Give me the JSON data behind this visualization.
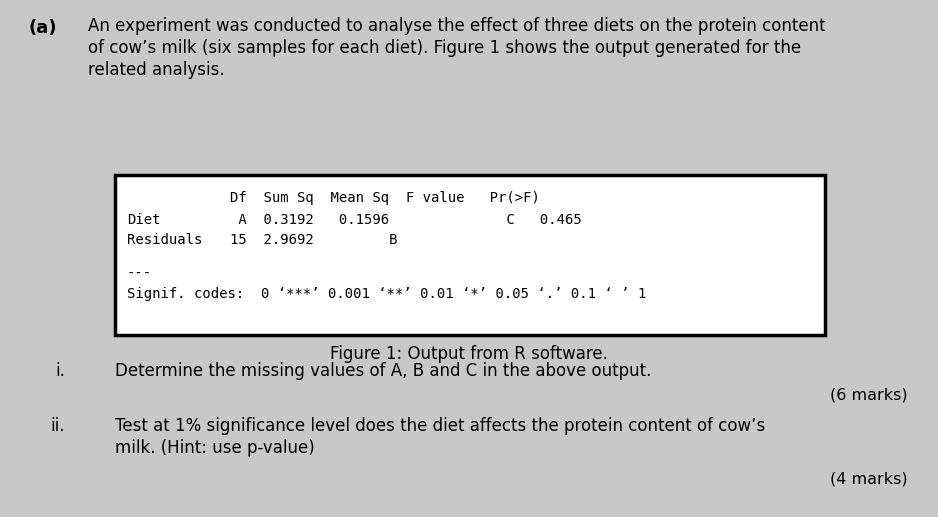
{
  "bg_color": "#c8c8c8",
  "part_label": "(a)",
  "intro_line1": "An experiment was conducted to analyse the effect of three diets on the protein content",
  "intro_line2": "of cow’s milk (six samples for each diet). Figure 1 shows the output generated for the",
  "intro_line3": "related analysis.",
  "box_header": "Df  Sum Sq  Mean Sq  F value   Pr(>F)",
  "box_diet_l": "Diet",
  "box_diet_r": "     A  0.3192   0.1596              C   0.465",
  "box_res_l": "Residuals",
  "box_res_r": "15  2.9692         B",
  "box_sep": "---",
  "box_signif": "Signif. codes:  0 ‘***’ 0.001 ‘**’ 0.01 ‘*’ 0.05 ‘.’ 0.1 ‘ ’ 1",
  "fig_caption": "Figure 1: Output from R software.",
  "i_label": "i.",
  "i_text": "Determine the missing values of A, B and C in the above output.",
  "i_marks": "(6 marks)",
  "ii_label": "ii.",
  "ii_line1": "Test at 1% significance level does the diet affects the protein content of cow’s",
  "ii_line2": "milk. (Hint: use p-value)",
  "ii_marks": "(4 marks)"
}
